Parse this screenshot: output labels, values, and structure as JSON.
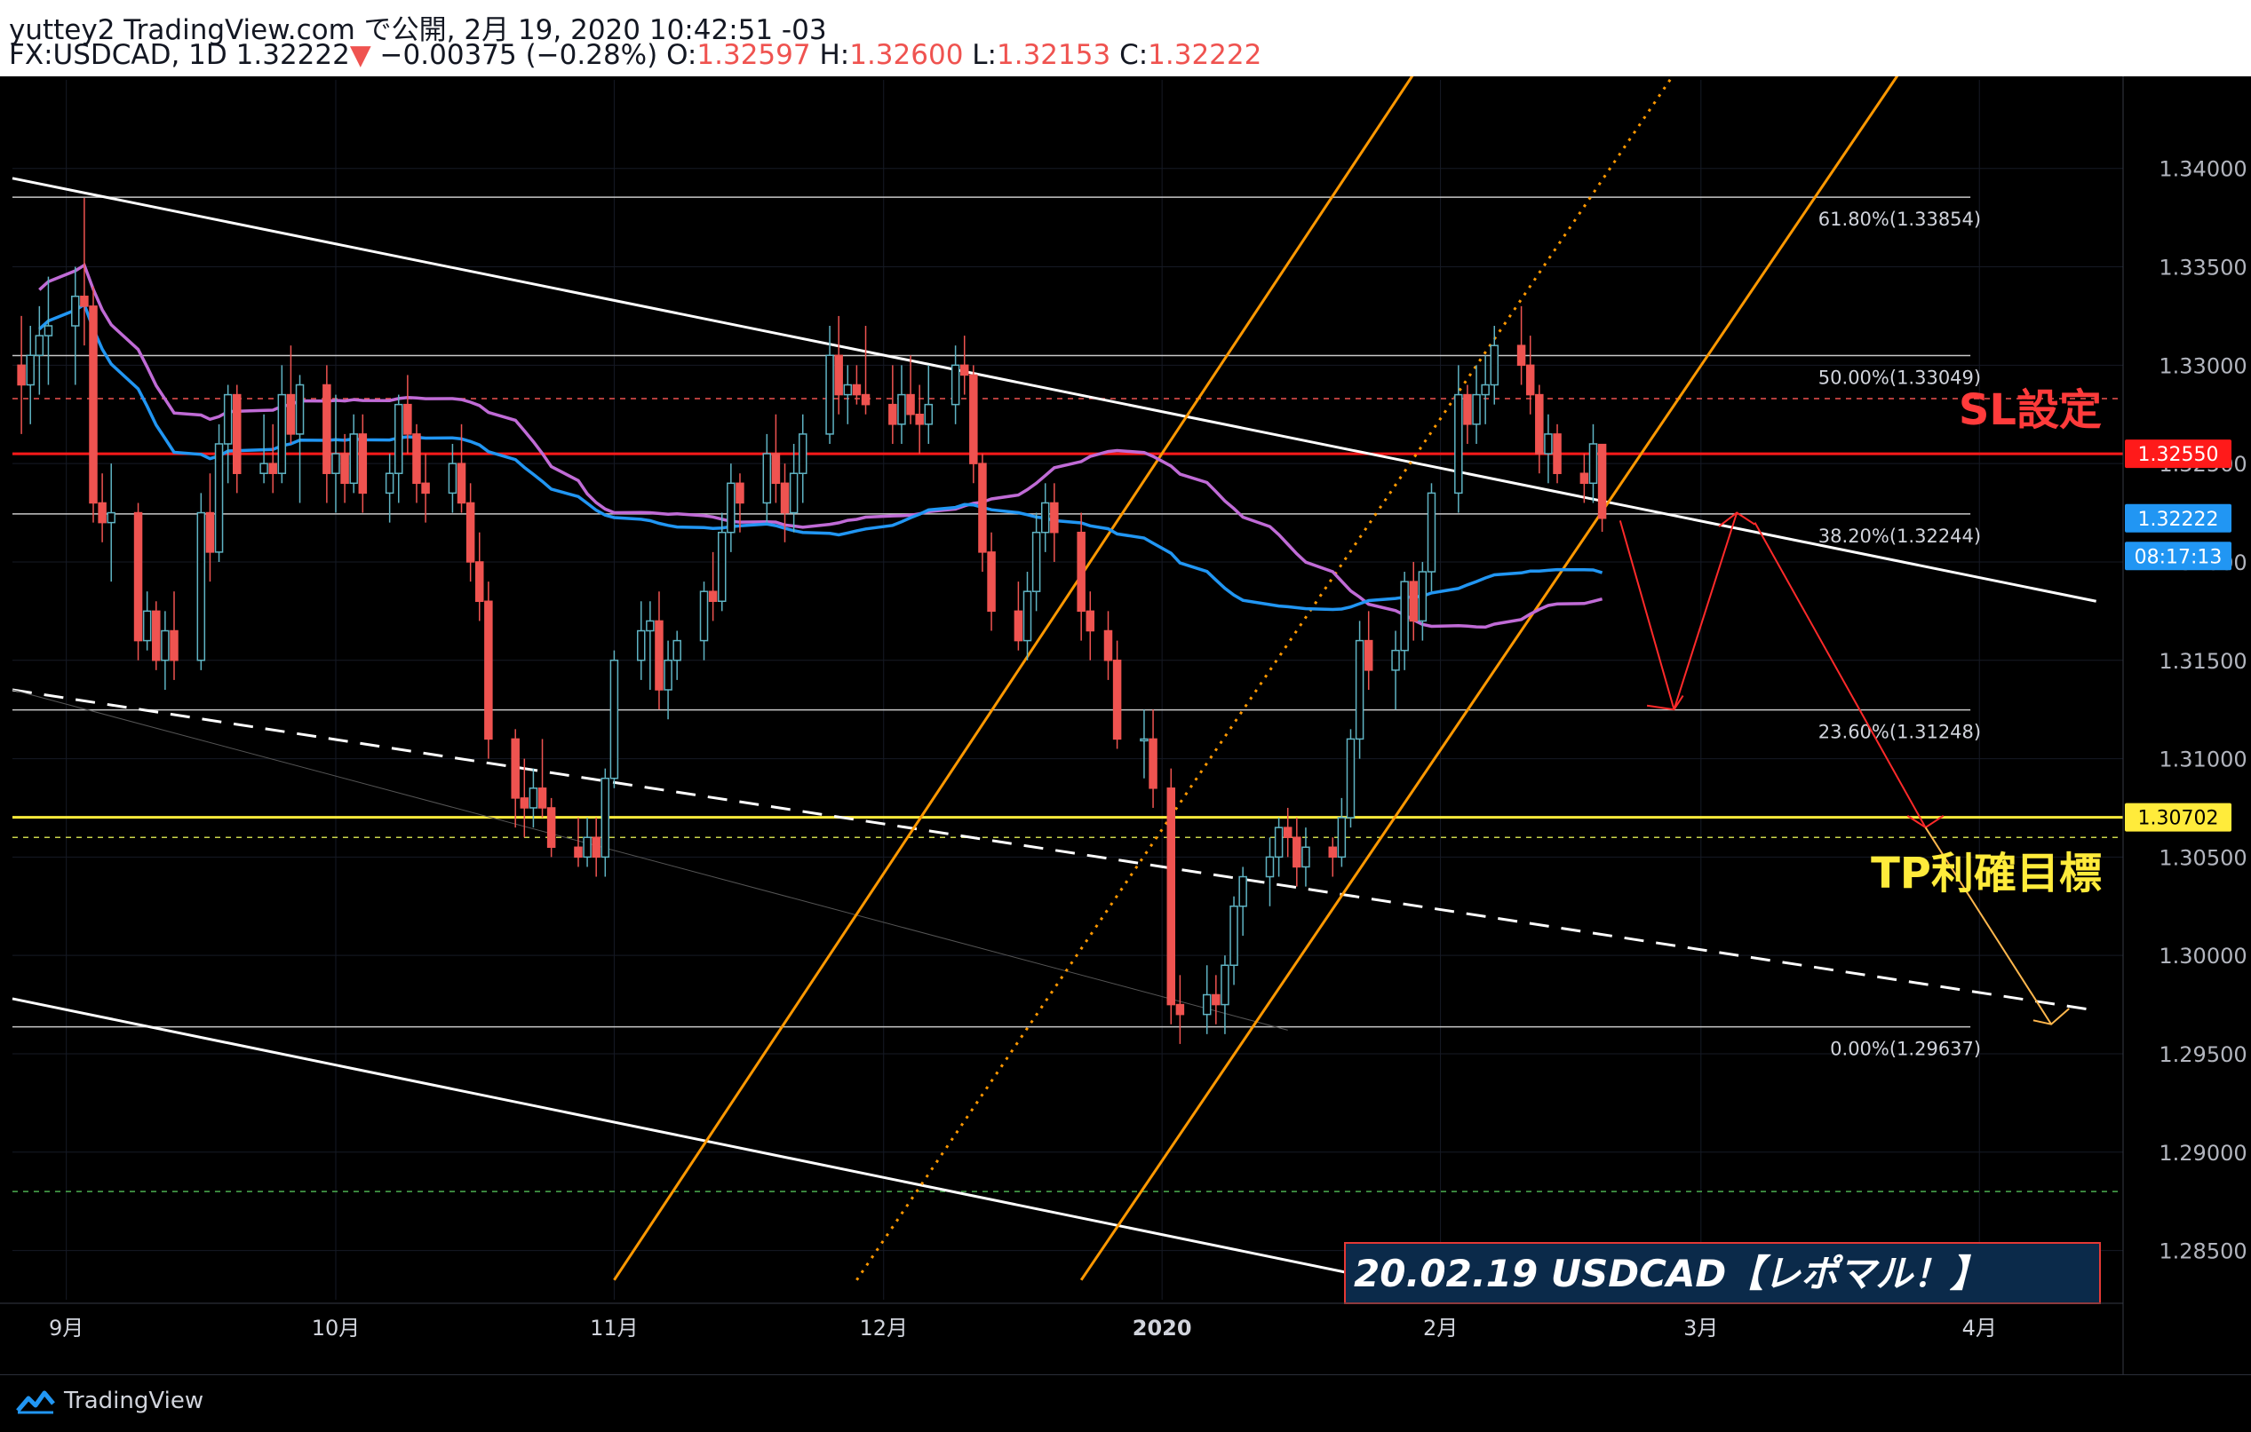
{
  "header": {
    "publisher": "yuttey2 TradingView.com で公開, 2月 19, 2020 10:42:51 -03",
    "symbol_tf": "FX:USDCAD, 1D",
    "last": "1.32222",
    "change": "−0.00375 (−0.28%)",
    "open_label": "O:",
    "open": "1.32597",
    "high_label": "H:",
    "high": "1.32600",
    "low_label": "L:",
    "low": "1.32153",
    "close_label": "C:",
    "close": "1.32222"
  },
  "footer": {
    "brand": "TradingView"
  },
  "colors": {
    "up": "#5fb3c3",
    "down": "#ef5350",
    "orange": "#ff9800",
    "sma_purple": "#c06bd6",
    "sma_blue": "#2196f3",
    "sl_red": "#ff1a1a",
    "tp_yellow": "#ffeb3b"
  },
  "chart_data": {
    "type": "candlestick",
    "ylim": [
      1.2825,
      1.3445
    ],
    "y_ticks": [
      "1.34000",
      "1.33500",
      "1.33000",
      "1.32500",
      "1.32000",
      "1.31500",
      "1.31000",
      "1.30500",
      "1.30000",
      "1.29500",
      "1.29000",
      "1.28500"
    ],
    "x_ticks": [
      {
        "label": "9月",
        "date": "2019-09-01"
      },
      {
        "label": "10月",
        "date": "2019-10-01"
      },
      {
        "label": "11月",
        "date": "2019-11-01"
      },
      {
        "label": "12月",
        "date": "2019-12-01"
      },
      {
        "label": "2020",
        "date": "2020-01-01"
      },
      {
        "label": "2月",
        "date": "2020-02-01"
      },
      {
        "label": "3月",
        "date": "2020-03-01"
      },
      {
        "label": "4月",
        "date": "2020-04-01"
      }
    ],
    "price_labels": [
      {
        "label": "1.32550",
        "value": 1.3255,
        "bg": "#ff1a1a",
        "fg": "#ffffff"
      },
      {
        "label": "1.32222",
        "value": 1.32222,
        "bg": "#2196f3",
        "fg": "#ffffff"
      },
      {
        "label": "08:17:13",
        "value": 1.3203,
        "bg": "#2196f3",
        "fg": "#ffffff"
      },
      {
        "label": "1.30702",
        "value": 1.30702,
        "bg": "#ffeb3b",
        "fg": "#000000"
      }
    ],
    "fib_levels": [
      {
        "label": "61.80%(1.33854)",
        "value": 1.33854
      },
      {
        "label": "50.00%(1.33049)",
        "value": 1.33049
      },
      {
        "label": "38.20%(1.32244)",
        "value": 1.32244
      },
      {
        "label": "23.60%(1.31248)",
        "value": 1.31248
      },
      {
        "label": "0.00%(1.29637)",
        "value": 1.29637
      }
    ],
    "annotations": {
      "sl": "SL設定",
      "tp": "TP利確目標",
      "title_box": "20.02.19 USDCAD【レポマル！】"
    },
    "candles": [
      {
        "d": "2019-08-27",
        "o": 1.33,
        "h": 1.3325,
        "l": 1.3265,
        "c": 1.329
      },
      {
        "d": "2019-08-28",
        "o": 1.329,
        "h": 1.332,
        "l": 1.327,
        "c": 1.3305
      },
      {
        "d": "2019-08-29",
        "o": 1.3305,
        "h": 1.333,
        "l": 1.3285,
        "c": 1.3315
      },
      {
        "d": "2019-08-30",
        "o": 1.3315,
        "h": 1.3345,
        "l": 1.329,
        "c": 1.332
      },
      {
        "d": "2019-09-02",
        "o": 1.332,
        "h": 1.335,
        "l": 1.329,
        "c": 1.3335
      },
      {
        "d": "2019-09-03",
        "o": 1.3335,
        "h": 1.3385,
        "l": 1.331,
        "c": 1.333
      },
      {
        "d": "2019-09-04",
        "o": 1.333,
        "h": 1.334,
        "l": 1.322,
        "c": 1.323
      },
      {
        "d": "2019-09-05",
        "o": 1.323,
        "h": 1.3245,
        "l": 1.321,
        "c": 1.322
      },
      {
        "d": "2019-09-06",
        "o": 1.322,
        "h": 1.325,
        "l": 1.319,
        "c": 1.3225
      },
      {
        "d": "2019-09-09",
        "o": 1.3225,
        "h": 1.323,
        "l": 1.315,
        "c": 1.316
      },
      {
        "d": "2019-09-10",
        "o": 1.316,
        "h": 1.3185,
        "l": 1.3155,
        "c": 1.3175
      },
      {
        "d": "2019-09-11",
        "o": 1.3175,
        "h": 1.318,
        "l": 1.3145,
        "c": 1.315
      },
      {
        "d": "2019-09-12",
        "o": 1.315,
        "h": 1.3175,
        "l": 1.3135,
        "c": 1.3165
      },
      {
        "d": "2019-09-13",
        "o": 1.3165,
        "h": 1.3185,
        "l": 1.314,
        "c": 1.315
      },
      {
        "d": "2019-09-16",
        "o": 1.315,
        "h": 1.3235,
        "l": 1.3145,
        "c": 1.3225
      },
      {
        "d": "2019-09-17",
        "o": 1.3225,
        "h": 1.3245,
        "l": 1.319,
        "c": 1.3205
      },
      {
        "d": "2019-09-18",
        "o": 1.3205,
        "h": 1.327,
        "l": 1.32,
        "c": 1.326
      },
      {
        "d": "2019-09-19",
        "o": 1.326,
        "h": 1.329,
        "l": 1.324,
        "c": 1.3285
      },
      {
        "d": "2019-09-20",
        "o": 1.3285,
        "h": 1.329,
        "l": 1.3235,
        "c": 1.3245
      },
      {
        "d": "2019-09-23",
        "o": 1.3245,
        "h": 1.3275,
        "l": 1.324,
        "c": 1.325
      },
      {
        "d": "2019-09-24",
        "o": 1.325,
        "h": 1.327,
        "l": 1.3235,
        "c": 1.3245
      },
      {
        "d": "2019-09-25",
        "o": 1.3245,
        "h": 1.33,
        "l": 1.324,
        "c": 1.3285
      },
      {
        "d": "2019-09-26",
        "o": 1.3285,
        "h": 1.331,
        "l": 1.326,
        "c": 1.3265
      },
      {
        "d": "2019-09-27",
        "o": 1.3265,
        "h": 1.3295,
        "l": 1.323,
        "c": 1.329
      },
      {
        "d": "2019-09-30",
        "o": 1.329,
        "h": 1.33,
        "l": 1.323,
        "c": 1.3245
      },
      {
        "d": "2019-10-01",
        "o": 1.3245,
        "h": 1.3285,
        "l": 1.3225,
        "c": 1.3255
      },
      {
        "d": "2019-10-02",
        "o": 1.3255,
        "h": 1.3265,
        "l": 1.323,
        "c": 1.324
      },
      {
        "d": "2019-10-03",
        "o": 1.324,
        "h": 1.3275,
        "l": 1.3235,
        "c": 1.3265
      },
      {
        "d": "2019-10-04",
        "o": 1.3265,
        "h": 1.3275,
        "l": 1.3225,
        "c": 1.3235
      },
      {
        "d": "2019-10-07",
        "o": 1.3235,
        "h": 1.3255,
        "l": 1.322,
        "c": 1.3245
      },
      {
        "d": "2019-10-08",
        "o": 1.3245,
        "h": 1.3285,
        "l": 1.323,
        "c": 1.328
      },
      {
        "d": "2019-10-09",
        "o": 1.328,
        "h": 1.3295,
        "l": 1.3255,
        "c": 1.3265
      },
      {
        "d": "2019-10-10",
        "o": 1.3265,
        "h": 1.327,
        "l": 1.323,
        "c": 1.324
      },
      {
        "d": "2019-10-11",
        "o": 1.324,
        "h": 1.3255,
        "l": 1.322,
        "c": 1.3235
      },
      {
        "d": "2019-10-14",
        "o": 1.3235,
        "h": 1.326,
        "l": 1.3225,
        "c": 1.325
      },
      {
        "d": "2019-10-15",
        "o": 1.325,
        "h": 1.327,
        "l": 1.3225,
        "c": 1.323
      },
      {
        "d": "2019-10-16",
        "o": 1.323,
        "h": 1.324,
        "l": 1.319,
        "c": 1.32
      },
      {
        "d": "2019-10-17",
        "o": 1.32,
        "h": 1.3215,
        "l": 1.317,
        "c": 1.318
      },
      {
        "d": "2019-10-18",
        "o": 1.318,
        "h": 1.319,
        "l": 1.31,
        "c": 1.311
      },
      {
        "d": "2019-10-21",
        "o": 1.311,
        "h": 1.3115,
        "l": 1.3065,
        "c": 1.308
      },
      {
        "d": "2019-10-22",
        "o": 1.308,
        "h": 1.31,
        "l": 1.306,
        "c": 1.3075
      },
      {
        "d": "2019-10-23",
        "o": 1.3075,
        "h": 1.3095,
        "l": 1.3065,
        "c": 1.3085
      },
      {
        "d": "2019-10-24",
        "o": 1.3085,
        "h": 1.311,
        "l": 1.307,
        "c": 1.3075
      },
      {
        "d": "2019-10-25",
        "o": 1.3075,
        "h": 1.308,
        "l": 1.305,
        "c": 1.3055
      },
      {
        "d": "2019-10-28",
        "o": 1.3055,
        "h": 1.307,
        "l": 1.3045,
        "c": 1.305
      },
      {
        "d": "2019-10-29",
        "o": 1.305,
        "h": 1.307,
        "l": 1.3045,
        "c": 1.306
      },
      {
        "d": "2019-10-30",
        "o": 1.306,
        "h": 1.307,
        "l": 1.304,
        "c": 1.305
      },
      {
        "d": "2019-10-31",
        "o": 1.305,
        "h": 1.3095,
        "l": 1.304,
        "c": 1.309
      },
      {
        "d": "2019-11-01",
        "o": 1.309,
        "h": 1.3155,
        "l": 1.3085,
        "c": 1.315
      },
      {
        "d": "2019-11-04",
        "o": 1.315,
        "h": 1.318,
        "l": 1.314,
        "c": 1.3165
      },
      {
        "d": "2019-11-05",
        "o": 1.3165,
        "h": 1.318,
        "l": 1.3135,
        "c": 1.317
      },
      {
        "d": "2019-11-06",
        "o": 1.317,
        "h": 1.3185,
        "l": 1.3125,
        "c": 1.3135
      },
      {
        "d": "2019-11-07",
        "o": 1.3135,
        "h": 1.316,
        "l": 1.312,
        "c": 1.315
      },
      {
        "d": "2019-11-08",
        "o": 1.315,
        "h": 1.3165,
        "l": 1.314,
        "c": 1.316
      },
      {
        "d": "2019-11-11",
        "o": 1.316,
        "h": 1.319,
        "l": 1.315,
        "c": 1.3185
      },
      {
        "d": "2019-11-12",
        "o": 1.3185,
        "h": 1.3205,
        "l": 1.317,
        "c": 1.318
      },
      {
        "d": "2019-11-13",
        "o": 1.318,
        "h": 1.3225,
        "l": 1.3175,
        "c": 1.3215
      },
      {
        "d": "2019-11-14",
        "o": 1.3215,
        "h": 1.325,
        "l": 1.3205,
        "c": 1.324
      },
      {
        "d": "2019-11-15",
        "o": 1.324,
        "h": 1.3245,
        "l": 1.3215,
        "c": 1.323
      },
      {
        "d": "2019-11-18",
        "o": 1.323,
        "h": 1.3265,
        "l": 1.322,
        "c": 1.3255
      },
      {
        "d": "2019-11-19",
        "o": 1.3255,
        "h": 1.3275,
        "l": 1.323,
        "c": 1.324
      },
      {
        "d": "2019-11-20",
        "o": 1.324,
        "h": 1.325,
        "l": 1.321,
        "c": 1.3225
      },
      {
        "d": "2019-11-21",
        "o": 1.3225,
        "h": 1.326,
        "l": 1.3215,
        "c": 1.3245
      },
      {
        "d": "2019-11-22",
        "o": 1.3245,
        "h": 1.3275,
        "l": 1.323,
        "c": 1.3265
      },
      {
        "d": "2019-11-25",
        "o": 1.3265,
        "h": 1.332,
        "l": 1.326,
        "c": 1.3305
      },
      {
        "d": "2019-11-26",
        "o": 1.3305,
        "h": 1.3325,
        "l": 1.3275,
        "c": 1.3285
      },
      {
        "d": "2019-11-27",
        "o": 1.3285,
        "h": 1.33,
        "l": 1.327,
        "c": 1.329
      },
      {
        "d": "2019-11-28",
        "o": 1.329,
        "h": 1.33,
        "l": 1.328,
        "c": 1.3285
      },
      {
        "d": "2019-11-29",
        "o": 1.3285,
        "h": 1.332,
        "l": 1.3275,
        "c": 1.328
      },
      {
        "d": "2019-12-02",
        "o": 1.328,
        "h": 1.33,
        "l": 1.326,
        "c": 1.327
      },
      {
        "d": "2019-12-03",
        "o": 1.327,
        "h": 1.33,
        "l": 1.326,
        "c": 1.3285
      },
      {
        "d": "2019-12-04",
        "o": 1.3285,
        "h": 1.3305,
        "l": 1.327,
        "c": 1.3275
      },
      {
        "d": "2019-12-05",
        "o": 1.3275,
        "h": 1.329,
        "l": 1.3255,
        "c": 1.327
      },
      {
        "d": "2019-12-06",
        "o": 1.327,
        "h": 1.33,
        "l": 1.326,
        "c": 1.328
      },
      {
        "d": "2019-12-09",
        "o": 1.328,
        "h": 1.331,
        "l": 1.327,
        "c": 1.33
      },
      {
        "d": "2019-12-10",
        "o": 1.33,
        "h": 1.3315,
        "l": 1.3285,
        "c": 1.3295
      },
      {
        "d": "2019-12-11",
        "o": 1.3295,
        "h": 1.33,
        "l": 1.324,
        "c": 1.325
      },
      {
        "d": "2019-12-12",
        "o": 1.325,
        "h": 1.3255,
        "l": 1.3195,
        "c": 1.3205
      },
      {
        "d": "2019-12-13",
        "o": 1.3205,
        "h": 1.3215,
        "l": 1.3165,
        "c": 1.3175
      },
      {
        "d": "2019-12-16",
        "o": 1.3175,
        "h": 1.319,
        "l": 1.3155,
        "c": 1.316
      },
      {
        "d": "2019-12-17",
        "o": 1.316,
        "h": 1.3195,
        "l": 1.315,
        "c": 1.3185
      },
      {
        "d": "2019-12-18",
        "o": 1.3185,
        "h": 1.3225,
        "l": 1.3175,
        "c": 1.3215
      },
      {
        "d": "2019-12-19",
        "o": 1.3215,
        "h": 1.324,
        "l": 1.3205,
        "c": 1.323
      },
      {
        "d": "2019-12-20",
        "o": 1.323,
        "h": 1.324,
        "l": 1.32,
        "c": 1.3215
      },
      {
        "d": "2019-12-23",
        "o": 1.3215,
        "h": 1.3225,
        "l": 1.316,
        "c": 1.3175
      },
      {
        "d": "2019-12-24",
        "o": 1.3175,
        "h": 1.3185,
        "l": 1.315,
        "c": 1.3165
      },
      {
        "d": "2019-12-26",
        "o": 1.3165,
        "h": 1.3175,
        "l": 1.314,
        "c": 1.315
      },
      {
        "d": "2019-12-27",
        "o": 1.315,
        "h": 1.316,
        "l": 1.3105,
        "c": 1.311
      },
      {
        "d": "2019-12-30",
        "o": 1.311,
        "h": 1.3125,
        "l": 1.309,
        "c": 1.311
      },
      {
        "d": "2019-12-31",
        "o": 1.311,
        "h": 1.3125,
        "l": 1.3075,
        "c": 1.3085
      },
      {
        "d": "2020-01-02",
        "o": 1.3085,
        "h": 1.3095,
        "l": 1.2965,
        "c": 1.2975
      },
      {
        "d": "2020-01-03",
        "o": 1.2975,
        "h": 1.299,
        "l": 1.2955,
        "c": 1.297
      },
      {
        "d": "2020-01-06",
        "o": 1.297,
        "h": 1.2995,
        "l": 1.296,
        "c": 1.298
      },
      {
        "d": "2020-01-07",
        "o": 1.298,
        "h": 1.299,
        "l": 1.2965,
        "c": 1.2975
      },
      {
        "d": "2020-01-08",
        "o": 1.2975,
        "h": 1.3,
        "l": 1.296,
        "c": 1.2995
      },
      {
        "d": "2020-01-09",
        "o": 1.2995,
        "h": 1.303,
        "l": 1.2985,
        "c": 1.3025
      },
      {
        "d": "2020-01-10",
        "o": 1.3025,
        "h": 1.3045,
        "l": 1.301,
        "c": 1.304
      },
      {
        "d": "2020-01-13",
        "o": 1.304,
        "h": 1.306,
        "l": 1.3025,
        "c": 1.305
      },
      {
        "d": "2020-01-14",
        "o": 1.305,
        "h": 1.307,
        "l": 1.304,
        "c": 1.3065
      },
      {
        "d": "2020-01-15",
        "o": 1.3065,
        "h": 1.3075,
        "l": 1.305,
        "c": 1.306
      },
      {
        "d": "2020-01-16",
        "o": 1.306,
        "h": 1.307,
        "l": 1.3035,
        "c": 1.3045
      },
      {
        "d": "2020-01-17",
        "o": 1.3045,
        "h": 1.3065,
        "l": 1.3035,
        "c": 1.3055
      },
      {
        "d": "2020-01-20",
        "o": 1.3055,
        "h": 1.306,
        "l": 1.304,
        "c": 1.305
      },
      {
        "d": "2020-01-21",
        "o": 1.305,
        "h": 1.308,
        "l": 1.3045,
        "c": 1.307
      },
      {
        "d": "2020-01-22",
        "o": 1.307,
        "h": 1.3115,
        "l": 1.3065,
        "c": 1.311
      },
      {
        "d": "2020-01-23",
        "o": 1.311,
        "h": 1.317,
        "l": 1.31,
        "c": 1.316
      },
      {
        "d": "2020-01-24",
        "o": 1.316,
        "h": 1.3175,
        "l": 1.3135,
        "c": 1.3145
      },
      {
        "d": "2020-01-27",
        "o": 1.3145,
        "h": 1.3165,
        "l": 1.3125,
        "c": 1.3155
      },
      {
        "d": "2020-01-28",
        "o": 1.3155,
        "h": 1.3195,
        "l": 1.3145,
        "c": 1.319
      },
      {
        "d": "2020-01-29",
        "o": 1.319,
        "h": 1.32,
        "l": 1.316,
        "c": 1.317
      },
      {
        "d": "2020-01-30",
        "o": 1.317,
        "h": 1.32,
        "l": 1.316,
        "c": 1.3195
      },
      {
        "d": "2020-01-31",
        "o": 1.3195,
        "h": 1.324,
        "l": 1.3185,
        "c": 1.3235
      },
      {
        "d": "2020-02-03",
        "o": 1.3235,
        "h": 1.33,
        "l": 1.3225,
        "c": 1.3285
      },
      {
        "d": "2020-02-04",
        "o": 1.3285,
        "h": 1.329,
        "l": 1.326,
        "c": 1.327
      },
      {
        "d": "2020-02-05",
        "o": 1.327,
        "h": 1.33,
        "l": 1.326,
        "c": 1.3285
      },
      {
        "d": "2020-02-06",
        "o": 1.3285,
        "h": 1.3305,
        "l": 1.327,
        "c": 1.329
      },
      {
        "d": "2020-02-07",
        "o": 1.329,
        "h": 1.332,
        "l": 1.328,
        "c": 1.331
      },
      {
        "d": "2020-02-10",
        "o": 1.331,
        "h": 1.333,
        "l": 1.329,
        "c": 1.33
      },
      {
        "d": "2020-02-11",
        "o": 1.33,
        "h": 1.3315,
        "l": 1.3275,
        "c": 1.3285
      },
      {
        "d": "2020-02-12",
        "o": 1.3285,
        "h": 1.329,
        "l": 1.3245,
        "c": 1.3255
      },
      {
        "d": "2020-02-13",
        "o": 1.3255,
        "h": 1.3275,
        "l": 1.324,
        "c": 1.3265
      },
      {
        "d": "2020-02-14",
        "o": 1.3265,
        "h": 1.327,
        "l": 1.324,
        "c": 1.3245
      },
      {
        "d": "2020-02-17",
        "o": 1.3245,
        "h": 1.3255,
        "l": 1.323,
        "c": 1.324
      },
      {
        "d": "2020-02-18",
        "o": 1.324,
        "h": 1.327,
        "l": 1.323,
        "c": 1.326
      },
      {
        "d": "2020-02-19",
        "o": 1.32597,
        "h": 1.326,
        "l": 1.32153,
        "c": 1.32222
      }
    ]
  }
}
